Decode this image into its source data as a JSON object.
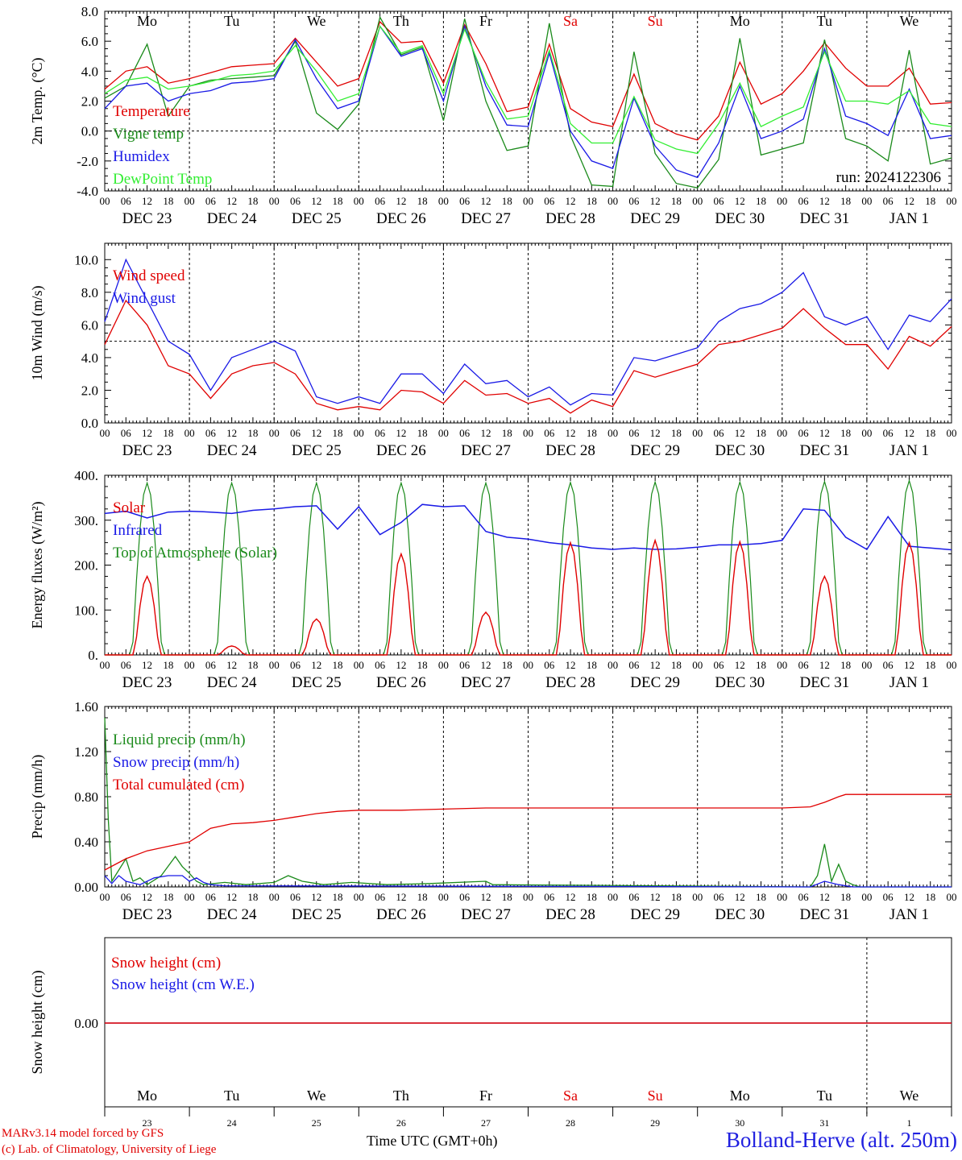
{
  "footer": {
    "credit_line1": "MARv3.14 model forced by GFS",
    "credit_line2": "(c) Lab. of Climatology, University of Liege",
    "x_axis_title": "Time UTC (GMT+0h)",
    "station": "Bolland-Herve (alt. 250m)"
  },
  "colors": {
    "red": "#e00000",
    "darkgreen": "#1a8a1a",
    "blue": "#1a1ae6",
    "lightgreen": "#33ee33",
    "axis": "#000000"
  },
  "chart_data": [
    {
      "type": "line",
      "ylabel": "2m Temp. (°C)",
      "ylim": [
        -4.0,
        8.0
      ],
      "yticks": [
        "8.0",
        "6.0",
        "4.0",
        "2.0",
        "0.0",
        "-2.0",
        "-4.0"
      ],
      "ytick_values": [
        8,
        6,
        4,
        2,
        0,
        -2,
        -4
      ],
      "reference_line": 0,
      "weekdays": [
        {
          "label": "Mo",
          "color": "#000000"
        },
        {
          "label": "Tu",
          "color": "#000000"
        },
        {
          "label": "We",
          "color": "#000000"
        },
        {
          "label": "Th",
          "color": "#000000"
        },
        {
          "label": "Fr",
          "color": "#000000"
        },
        {
          "label": "Sa",
          "color": "#e00000"
        },
        {
          "label": "Su",
          "color": "#e00000"
        },
        {
          "label": "Mo",
          "color": "#000000"
        },
        {
          "label": "Tu",
          "color": "#000000"
        },
        {
          "label": "We",
          "color": "#000000"
        }
      ],
      "annotation": "run: 2024122306",
      "series": [
        {
          "name": "Temperature",
          "color": "#e00000",
          "x": [
            0,
            6,
            12,
            18,
            24,
            30,
            36,
            42,
            48,
            54,
            60,
            66,
            72,
            78,
            84,
            90,
            96,
            102,
            108,
            114,
            120,
            126,
            132,
            138,
            144,
            150,
            156,
            162,
            168,
            174,
            180,
            186,
            192,
            198,
            204,
            210,
            216,
            222,
            228,
            234,
            240
          ],
          "values": [
            2.8,
            4.0,
            4.3,
            3.2,
            3.5,
            3.9,
            4.3,
            4.4,
            4.5,
            6.2,
            4.6,
            3.0,
            3.5,
            7.3,
            5.9,
            6.0,
            3.2,
            7.1,
            4.5,
            1.3,
            1.6,
            5.8,
            1.5,
            0.6,
            0.3,
            3.8,
            0.5,
            -0.2,
            -0.6,
            1.0,
            4.6,
            1.8,
            2.5,
            4.0,
            5.9,
            4.2,
            3.0,
            3.0,
            4.2,
            1.8,
            1.9
          ]
        },
        {
          "name": "Vigne temp",
          "color": "#1a8a1a",
          "x": [
            0,
            6,
            12,
            18,
            24,
            30,
            36,
            42,
            48,
            54,
            60,
            66,
            72,
            78,
            84,
            90,
            96,
            102,
            108,
            114,
            120,
            126,
            132,
            138,
            144,
            150,
            156,
            162,
            168,
            174,
            180,
            186,
            192,
            198,
            204,
            210,
            216,
            222,
            228,
            234,
            240
          ],
          "values": [
            2.2,
            3.0,
            5.8,
            1.0,
            3.0,
            3.4,
            3.5,
            3.6,
            3.7,
            6.0,
            1.2,
            0.1,
            1.8,
            7.6,
            5.1,
            5.6,
            0.7,
            7.5,
            2.0,
            -1.3,
            -1.0,
            7.2,
            -0.3,
            -3.6,
            -3.7,
            5.3,
            -1.5,
            -3.5,
            -3.8,
            -1.9,
            6.2,
            -1.6,
            -1.2,
            -0.8,
            6.1,
            -0.5,
            -1.0,
            -2.0,
            5.4,
            -2.2,
            -1.8
          ]
        },
        {
          "name": "Humidex",
          "color": "#1a1ae6",
          "x": [
            0,
            6,
            12,
            18,
            24,
            30,
            36,
            42,
            48,
            54,
            60,
            66,
            72,
            78,
            84,
            90,
            96,
            102,
            108,
            114,
            120,
            126,
            132,
            138,
            144,
            150,
            156,
            162,
            168,
            174,
            180,
            186,
            192,
            198,
            204,
            210,
            216,
            222,
            228,
            234,
            240
          ],
          "values": [
            1.5,
            3.0,
            3.2,
            2.0,
            2.5,
            2.7,
            3.2,
            3.3,
            3.5,
            6.1,
            3.5,
            1.5,
            2.0,
            7.0,
            5.0,
            5.5,
            2.0,
            7.0,
            3.0,
            0.4,
            0.3,
            5.2,
            0.0,
            -2.0,
            -2.5,
            2.2,
            -1.0,
            -2.6,
            -3.1,
            -0.8,
            3.0,
            -0.5,
            0.0,
            0.8,
            5.5,
            1.0,
            0.5,
            -0.3,
            2.8,
            -0.5,
            -0.3
          ]
        },
        {
          "name": "DewPoint Temp",
          "color": "#33ee33",
          "x": [
            0,
            6,
            12,
            18,
            24,
            30,
            36,
            42,
            48,
            54,
            60,
            66,
            72,
            78,
            84,
            90,
            96,
            102,
            108,
            114,
            120,
            126,
            132,
            138,
            144,
            150,
            156,
            162,
            168,
            174,
            180,
            186,
            192,
            198,
            204,
            210,
            216,
            222,
            228,
            234,
            240
          ],
          "values": [
            2.5,
            3.4,
            3.6,
            2.8,
            3.0,
            3.3,
            3.7,
            3.8,
            4.0,
            5.7,
            4.0,
            2.0,
            2.5,
            7.0,
            5.2,
            5.7,
            2.5,
            6.8,
            3.3,
            0.8,
            1.0,
            5.4,
            0.5,
            -0.8,
            -0.8,
            2.3,
            -0.6,
            -1.2,
            -1.5,
            0.5,
            3.2,
            0.3,
            1.0,
            1.6,
            5.3,
            2.0,
            2.0,
            1.8,
            2.7,
            0.5,
            0.3
          ]
        }
      ]
    },
    {
      "type": "line",
      "ylabel": "10m Wind (m/s)",
      "ylim": [
        0.0,
        11.0
      ],
      "yticks": [
        "10.0",
        "8.0",
        "6.0",
        "4.0",
        "2.0",
        "0.0"
      ],
      "ytick_values": [
        10,
        8,
        6,
        4,
        2,
        0
      ],
      "reference_line": 5,
      "series": [
        {
          "name": "Wind speed",
          "color": "#e00000",
          "x": [
            0,
            6,
            12,
            18,
            24,
            30,
            36,
            42,
            48,
            54,
            60,
            66,
            72,
            78,
            84,
            90,
            96,
            102,
            108,
            114,
            120,
            126,
            132,
            138,
            144,
            150,
            156,
            162,
            168,
            174,
            180,
            186,
            192,
            198,
            204,
            210,
            216,
            222,
            228,
            234,
            240
          ],
          "values": [
            4.8,
            7.5,
            6.0,
            3.5,
            3.0,
            1.5,
            3.0,
            3.5,
            3.7,
            3.0,
            1.2,
            0.8,
            1.0,
            0.8,
            2.0,
            1.9,
            1.2,
            2.6,
            1.7,
            1.8,
            1.2,
            1.5,
            0.6,
            1.4,
            1.0,
            3.2,
            2.8,
            3.2,
            3.6,
            4.8,
            5.0,
            5.4,
            5.8,
            7.0,
            5.8,
            4.8,
            4.8,
            3.3,
            5.3,
            4.7,
            5.9
          ]
        },
        {
          "name": "Wind gust",
          "color": "#1a1ae6",
          "x": [
            0,
            6,
            12,
            18,
            24,
            30,
            36,
            42,
            48,
            54,
            60,
            66,
            72,
            78,
            84,
            90,
            96,
            102,
            108,
            114,
            120,
            126,
            132,
            138,
            144,
            150,
            156,
            162,
            168,
            174,
            180,
            186,
            192,
            198,
            204,
            210,
            216,
            222,
            228,
            234,
            240
          ],
          "values": [
            6.2,
            10.0,
            7.5,
            5.0,
            4.2,
            2.0,
            4.0,
            4.5,
            5.0,
            4.4,
            1.6,
            1.2,
            1.6,
            1.2,
            3.0,
            3.0,
            1.8,
            3.6,
            2.4,
            2.6,
            1.6,
            2.2,
            1.1,
            1.8,
            1.7,
            4.0,
            3.8,
            4.2,
            4.6,
            6.2,
            7.0,
            7.3,
            8.0,
            9.2,
            6.5,
            6.0,
            6.5,
            4.5,
            6.6,
            6.2,
            7.6
          ]
        }
      ]
    },
    {
      "type": "line",
      "ylabel": "Energy fluxes (W/m²)",
      "ylim": [
        0,
        400
      ],
      "yticks": [
        "400.",
        "300.",
        "200.",
        "100.",
        "0."
      ],
      "ytick_values": [
        400,
        300,
        200,
        100,
        0
      ],
      "series": [
        {
          "name": "Solar",
          "color": "#e00000",
          "day_peaks": [
            175,
            20,
            80,
            225,
            95,
            250,
            255,
            252,
            175,
            250
          ]
        },
        {
          "name": "Infrared",
          "color": "#1a1ae6",
          "x": [
            0,
            6,
            12,
            18,
            24,
            30,
            36,
            42,
            48,
            54,
            60,
            66,
            72,
            78,
            84,
            90,
            96,
            102,
            108,
            114,
            120,
            126,
            132,
            138,
            144,
            150,
            156,
            162,
            168,
            174,
            180,
            186,
            192,
            198,
            204,
            210,
            216,
            222,
            228,
            234,
            240
          ],
          "values": [
            315,
            320,
            305,
            318,
            320,
            318,
            315,
            322,
            325,
            330,
            332,
            280,
            330,
            268,
            295,
            335,
            330,
            332,
            275,
            262,
            258,
            250,
            245,
            238,
            235,
            238,
            235,
            236,
            240,
            245,
            245,
            248,
            255,
            325,
            322,
            262,
            235,
            308,
            242,
            238,
            234
          ]
        },
        {
          "name": "Top of Atmosphere (Solar)",
          "color": "#1a8a1a",
          "day_peaks": [
            383,
            383,
            383,
            383,
            383,
            384,
            385,
            385,
            386,
            388
          ]
        }
      ]
    },
    {
      "type": "line",
      "ylabel": "Precip (mm/h)",
      "ylim": [
        0.0,
        1.6
      ],
      "yticks": [
        "1.60",
        "1.20",
        "0.80",
        "0.40",
        "0.00"
      ],
      "ytick_values": [
        1.6,
        1.2,
        0.8,
        0.4,
        0
      ],
      "series": [
        {
          "name": "Liquid precip (mm/h)",
          "color": "#1a8a1a",
          "x": [
            0,
            1,
            2,
            4,
            6,
            8,
            10,
            12,
            16,
            20,
            22,
            24,
            26,
            28,
            34,
            40,
            48,
            52,
            56,
            62,
            70,
            80,
            92,
            108,
            110,
            200,
            202,
            204,
            206,
            208,
            210,
            212,
            214,
            240
          ],
          "values": [
            1.5,
            0.6,
            0.05,
            0.15,
            0.25,
            0.05,
            0.08,
            0.02,
            0.1,
            0.27,
            0.18,
            0.12,
            0.05,
            0.02,
            0.04,
            0.02,
            0.04,
            0.1,
            0.05,
            0.02,
            0.04,
            0.02,
            0.03,
            0.05,
            0.02,
            0.0,
            0.1,
            0.38,
            0.05,
            0.2,
            0.05,
            0.02,
            0.0,
            0.0
          ]
        },
        {
          "name": "Snow precip (mm/h)",
          "color": "#1a1ae6",
          "x": [
            0,
            2,
            4,
            6,
            10,
            14,
            18,
            22,
            24,
            26,
            28,
            30,
            34,
            200,
            204,
            208,
            212,
            240
          ],
          "values": [
            0.1,
            0.03,
            0.1,
            0.05,
            0.02,
            0.08,
            0.1,
            0.1,
            0.05,
            0.08,
            0.04,
            0.02,
            0.01,
            0.0,
            0.05,
            0.02,
            0.0,
            0.0
          ]
        },
        {
          "name": "Total cumulated (cm)",
          "color": "#e00000",
          "x": [
            0,
            6,
            12,
            18,
            24,
            30,
            36,
            42,
            48,
            54,
            60,
            66,
            72,
            84,
            96,
            108,
            120,
            132,
            144,
            156,
            168,
            180,
            192,
            200,
            204,
            208,
            210,
            216,
            228,
            240
          ],
          "values": [
            0.15,
            0.25,
            0.32,
            0.36,
            0.4,
            0.52,
            0.56,
            0.57,
            0.59,
            0.62,
            0.65,
            0.67,
            0.68,
            0.68,
            0.69,
            0.7,
            0.7,
            0.7,
            0.7,
            0.7,
            0.7,
            0.7,
            0.7,
            0.71,
            0.75,
            0.8,
            0.82,
            0.82,
            0.82,
            0.82
          ]
        }
      ]
    },
    {
      "type": "line",
      "ylabel": "Snow height (cm)",
      "yticks": [
        "0.00"
      ],
      "series": [
        {
          "name": "Snow height (cm)",
          "color": "#e00000",
          "x": [
            0,
            240
          ],
          "values": [
            0,
            0
          ]
        },
        {
          "name": "Snow height (cm W.E.)",
          "color": "#1a1ae6",
          "x": [
            0,
            240
          ],
          "values": [
            0,
            0
          ]
        }
      ]
    }
  ],
  "time_axis": {
    "hour_labels": [
      "00",
      "06",
      "12",
      "18"
    ],
    "final_hour_label": "00",
    "date_labels": [
      {
        "month": "DEC",
        "day": "23"
      },
      {
        "month": "DEC",
        "day": "24"
      },
      {
        "month": "DEC",
        "day": "25"
      },
      {
        "month": "DEC",
        "day": "26"
      },
      {
        "month": "DEC",
        "day": "27"
      },
      {
        "month": "DEC",
        "day": "28"
      },
      {
        "month": "DEC",
        "day": "29"
      },
      {
        "month": "DEC",
        "day": "30"
      },
      {
        "month": "DEC",
        "day": "31"
      },
      {
        "month": "JAN",
        "day": "1"
      }
    ],
    "bottom_day_numbers": [
      "23",
      "24",
      "25",
      "26",
      "27",
      "28",
      "29",
      "30",
      "31",
      "1"
    ]
  }
}
